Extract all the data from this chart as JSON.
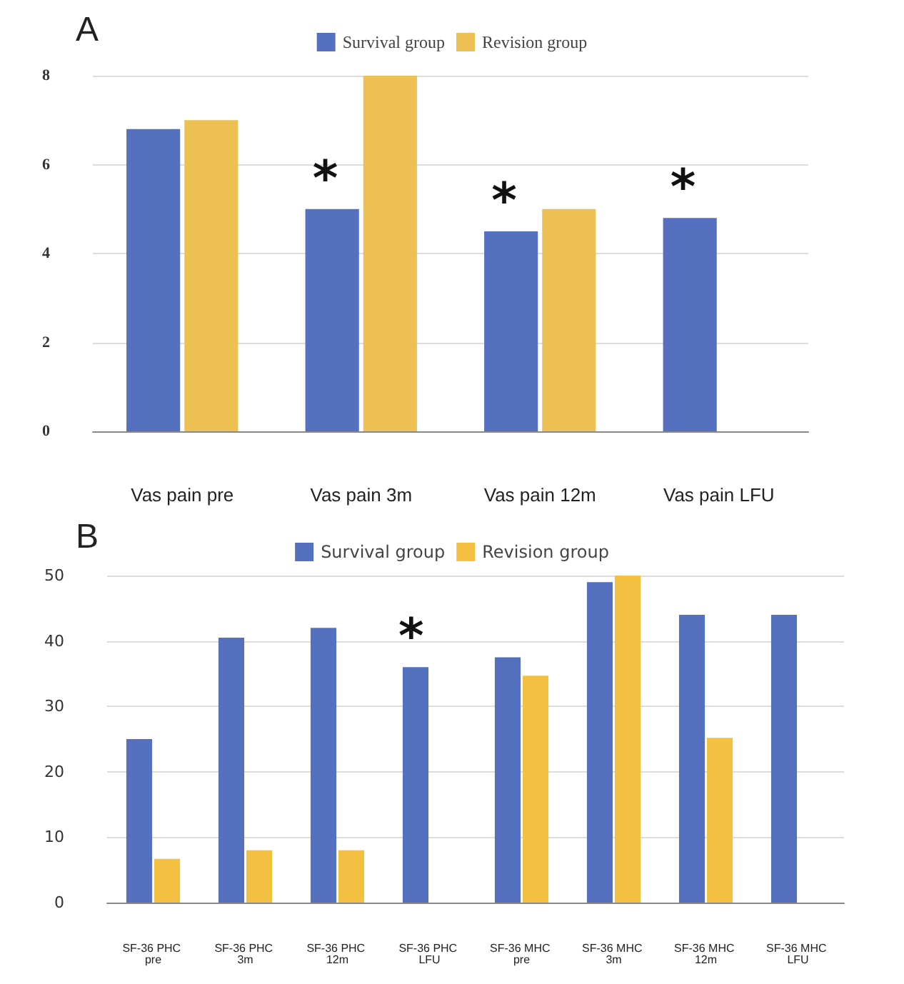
{
  "chart_data": [
    {
      "type": "bar",
      "title": "A",
      "categories": [
        "Vas pain pre",
        "Vas pain 3m",
        "Vas pain 12m",
        "Vas pain LFU"
      ],
      "series": [
        {
          "name": "Survival group",
          "color": "#5470bf",
          "values": [
            6.8,
            5.0,
            4.5,
            4.8
          ]
        },
        {
          "name": "Revision group",
          "color": "#ecc052",
          "values": [
            7.0,
            8.0,
            5.0,
            null
          ]
        }
      ],
      "ylim": [
        0,
        8
      ],
      "yticks": [
        0,
        2,
        4,
        6,
        8
      ],
      "grid": "y",
      "legend": "top",
      "annotations": [
        {
          "text": "*",
          "x": "Vas pain 3m",
          "y": 5.0
        },
        {
          "text": "*",
          "x": "Vas pain 12m",
          "y": 4.5
        },
        {
          "text": "*",
          "x": "Vas pain LFU",
          "y": 4.8
        }
      ]
    },
    {
      "type": "bar",
      "title": "B",
      "categories": [
        "SF-36 PHC pre",
        "SF-36 PHC 3m",
        "SF-36 PHC 12m",
        "SF-36 PHC LFU",
        "SF-36 MHC pre",
        "SF-36 MHC 3m",
        "SF-36 MHC 12m",
        "SF-36 MHC LFU"
      ],
      "series": [
        {
          "name": "Survival group",
          "color": "#5470bf",
          "values": [
            25,
            40.5,
            42,
            36,
            37.5,
            49,
            44,
            44
          ]
        },
        {
          "name": "Revision group",
          "color": "#f4c042",
          "values": [
            6.7,
            8,
            8,
            null,
            34.7,
            50,
            25.2,
            null
          ]
        }
      ],
      "ylim": [
        0,
        50
      ],
      "yticks": [
        0,
        10,
        20,
        30,
        40,
        50
      ],
      "grid": "y",
      "legend": "top",
      "annotations": [
        {
          "text": "*",
          "x": "SF-36 PHC LFU",
          "y": 36
        }
      ]
    }
  ]
}
